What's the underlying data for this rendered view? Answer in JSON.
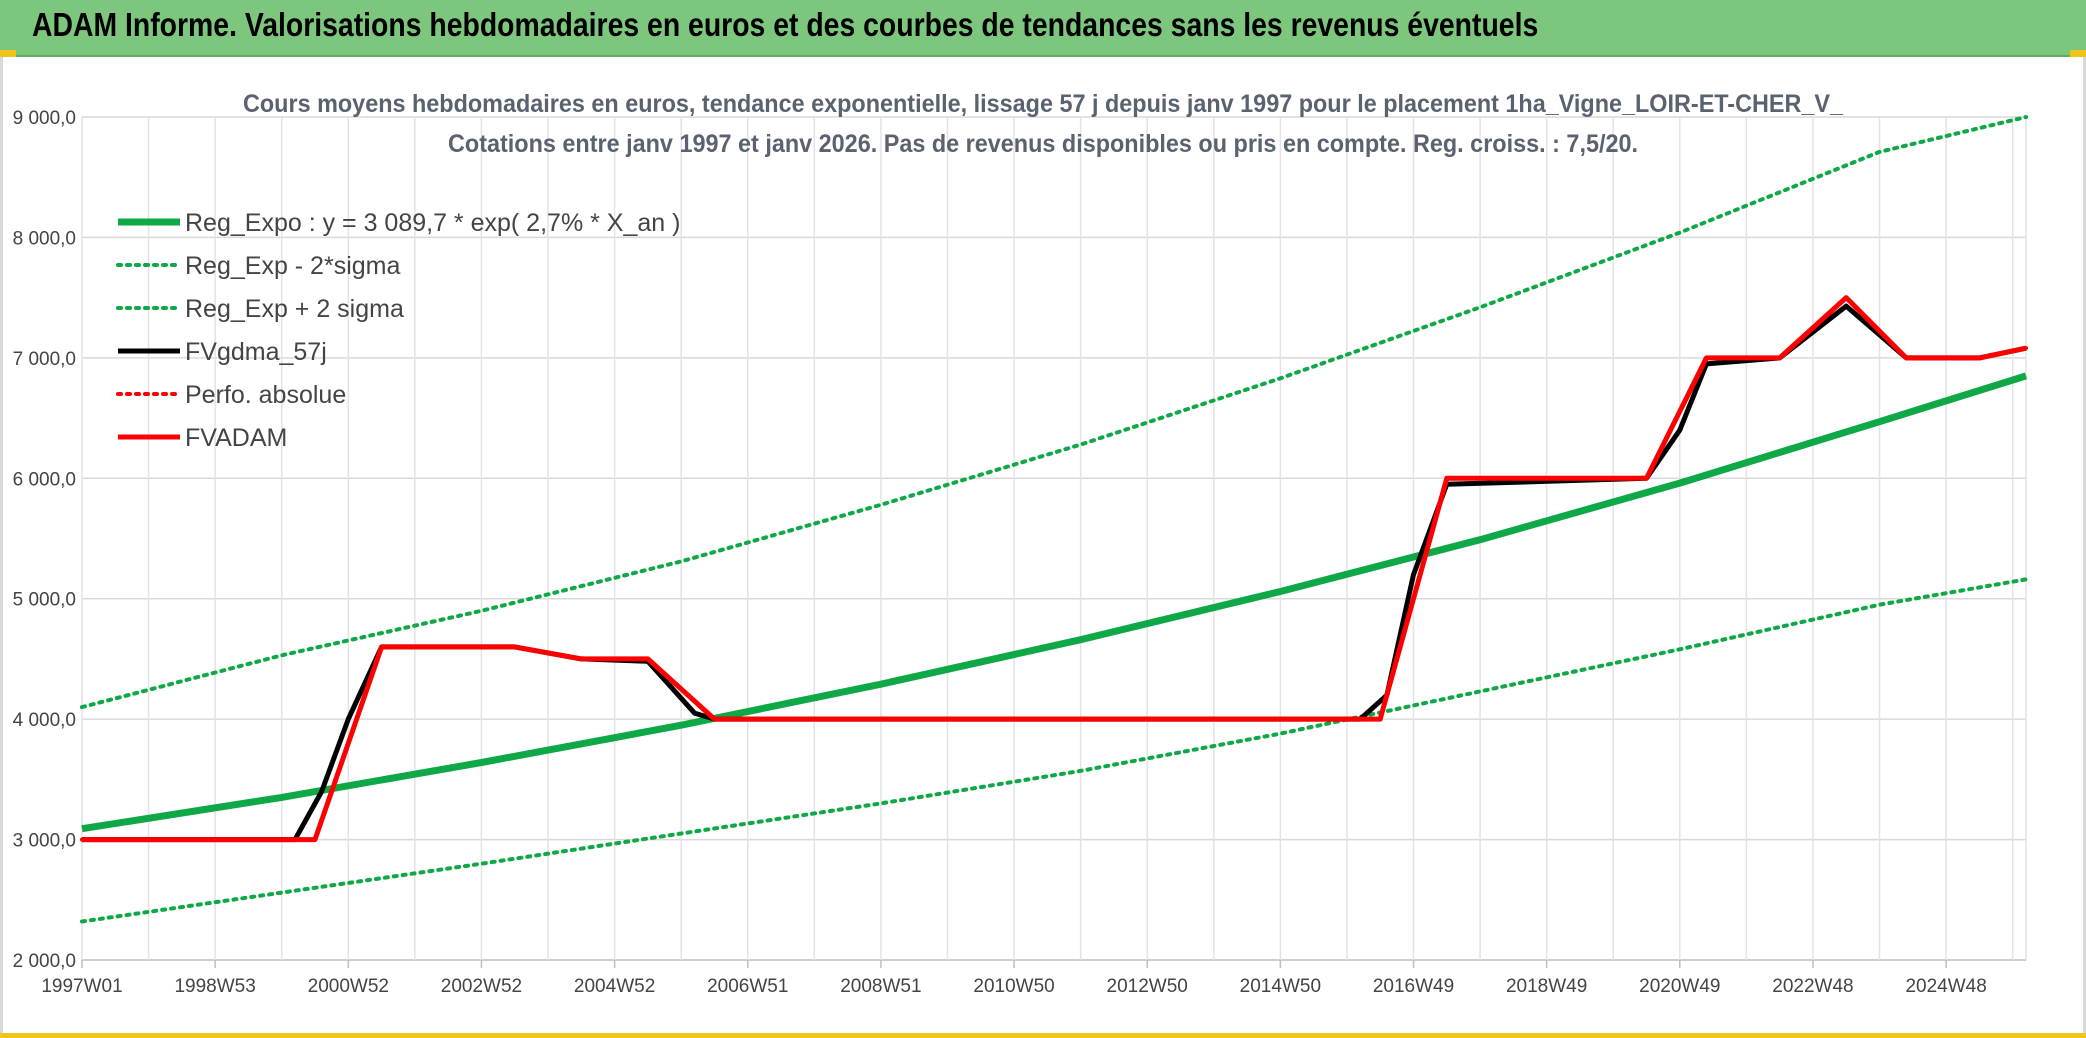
{
  "banner": {
    "title": "ADAM Informe. Valorisations hebdomadaires en euros et des courbes de tendances sans les revenus éventuels"
  },
  "colors": {
    "banner_bg": "#7dc67e",
    "accent_yellow": "#f0c419",
    "green": "#0fa847",
    "red": "#ff0000",
    "black": "#000000",
    "grid": "#d9d9d9"
  },
  "chart_data": {
    "type": "line",
    "title": "Cours moyens hebdomadaires en euros, tendance exponentielle, lissage 57 j depuis janv 1997 pour le placement 1ha_Vigne_LOIR-ET-CHER_V_",
    "subtitle": "Cotations entre janv 1997 et janv 2026. Pas de revenus disponibles ou pris en compte. Reg. croiss. : 7,5/20.",
    "ylim": [
      2000,
      9000
    ],
    "y_ticks": [
      "2 000,0",
      "3 000,0",
      "4 000,0",
      "5 000,0",
      "6 000,0",
      "7 000,0",
      "8 000,0",
      "9 000,0"
    ],
    "y_tick_values": [
      2000,
      3000,
      4000,
      5000,
      6000,
      7000,
      8000,
      9000
    ],
    "xlim": [
      1997.0,
      2026.2
    ],
    "x_ticks": [
      "1997W01",
      "1998W53",
      "2000W52",
      "2002W52",
      "2004W52",
      "2006W51",
      "2008W51",
      "2010W50",
      "2012W50",
      "2014W50",
      "2016W49",
      "2018W49",
      "2020W49",
      "2022W48",
      "2024W48"
    ],
    "x_tick_values": [
      1997.0,
      1999.0,
      2001.0,
      2003.0,
      2005.0,
      2007.0,
      2009.0,
      2011.0,
      2013.0,
      2015.0,
      2017.0,
      2019.0,
      2021.0,
      2023.0,
      2025.0
    ],
    "legend_position": "top-left",
    "series": [
      {
        "name": "Reg_Expo : y = 3 089,7 * exp( 2,7% *  X_an )",
        "style": "thick-solid",
        "color": "#0fa847",
        "x": [
          1997.0,
          2000.0,
          2003.0,
          2006.0,
          2009.0,
          2012.0,
          2015.0,
          2018.0,
          2021.0,
          2024.0,
          2026.2
        ],
        "values": [
          3090,
          3350,
          3640,
          3950,
          4290,
          4660,
          5060,
          5490,
          5960,
          6470,
          6850
        ]
      },
      {
        "name": "Reg_Exp - 2*sigma",
        "style": "dotted",
        "color": "#0fa847",
        "x": [
          1997.0,
          2000.0,
          2003.0,
          2006.0,
          2009.0,
          2012.0,
          2015.0,
          2018.0,
          2021.0,
          2024.0,
          2026.2
        ],
        "values": [
          2320,
          2560,
          2800,
          3050,
          3300,
          3570,
          3880,
          4230,
          4580,
          4950,
          5160
        ]
      },
      {
        "name": "Reg_Exp + 2 sigma",
        "style": "dotted",
        "color": "#0fa847",
        "x": [
          1997.0,
          2000.0,
          2003.0,
          2006.0,
          2009.0,
          2012.0,
          2015.0,
          2018.0,
          2021.0,
          2024.0,
          2026.2
        ],
        "values": [
          4100,
          4530,
          4900,
          5310,
          5780,
          6280,
          6830,
          7420,
          8040,
          8710,
          9000
        ]
      },
      {
        "name": "FVgdma_57j",
        "style": "solid",
        "color": "#000000",
        "x": [
          1997.0,
          2000.2,
          2000.6,
          2001.0,
          2001.5,
          2003.5,
          2004.5,
          2005.5,
          2006.2,
          2006.5,
          2016.2,
          2016.6,
          2017.0,
          2017.5,
          2020.5,
          2021.0,
          2021.4,
          2022.5,
          2023.5,
          2024.4,
          2025.5,
          2026.2
        ],
        "values": [
          3000,
          3000,
          3400,
          4000,
          4600,
          4600,
          4500,
          4480,
          4050,
          4000,
          4000,
          4200,
          5200,
          5950,
          6000,
          6400,
          6950,
          7000,
          7430,
          7000,
          7000,
          7080
        ]
      },
      {
        "name": "Perfo. absolue",
        "style": "dotted",
        "color": "#ff0000",
        "x": [
          1997.0,
          2000.5,
          2001.5,
          2003.5,
          2004.5,
          2005.5,
          2006.5,
          2016.5,
          2017.5,
          2020.5,
          2021.4,
          2022.5,
          2023.5,
          2024.4,
          2025.5,
          2026.2
        ],
        "values": [
          3000,
          3000,
          4600,
          4600,
          4500,
          4500,
          4000,
          4000,
          6000,
          6000,
          7000,
          7000,
          7500,
          7000,
          7000,
          7080
        ]
      },
      {
        "name": "FVADAM",
        "style": "medium-solid",
        "color": "#ff0000",
        "x": [
          1997.0,
          2000.5,
          2001.5,
          2003.5,
          2004.5,
          2005.5,
          2006.5,
          2016.5,
          2017.5,
          2020.5,
          2021.4,
          2022.5,
          2023.5,
          2024.4,
          2025.5,
          2026.2
        ],
        "values": [
          3000,
          3000,
          4600,
          4600,
          4500,
          4500,
          4000,
          4000,
          6000,
          6000,
          7000,
          7000,
          7500,
          7000,
          7000,
          7080
        ]
      }
    ]
  }
}
